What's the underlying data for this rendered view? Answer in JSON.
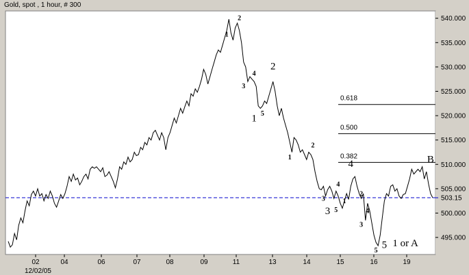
{
  "chart_data": {
    "type": "line",
    "title": "Gold, spot , 1 hour, # 300",
    "ylim": [
      491.5,
      541.5
    ],
    "y_ticks": [
      495,
      500,
      505,
      510,
      515,
      520,
      525,
      530,
      535,
      540
    ],
    "x_ticks": [
      "02",
      "04",
      "06",
      "07",
      "08",
      "09",
      "11",
      "13",
      "14",
      "15",
      "16",
      "19"
    ],
    "x_sub_label": "12/02/05",
    "last_price": {
      "value": 503.15,
      "label": "503.15",
      "color": "#0000cc"
    },
    "fib_levels": [
      {
        "label": "0.618",
        "value": 522.3
      },
      {
        "label": "0.500",
        "value": 516.3
      },
      {
        "label": "0.382",
        "value": 510.4
      }
    ],
    "series": [
      {
        "color": "#000000",
        "points": [
          [
            0,
            494.2
          ],
          [
            1,
            493.0
          ],
          [
            2,
            493.5
          ],
          [
            3,
            495.8
          ],
          [
            4,
            494.5
          ],
          [
            5,
            497.5
          ],
          [
            6,
            499.0
          ],
          [
            7,
            498.0
          ],
          [
            8,
            500.5
          ],
          [
            9,
            502.5
          ],
          [
            10,
            501.5
          ],
          [
            11,
            503.8
          ],
          [
            12,
            504.5
          ],
          [
            13,
            503.5
          ],
          [
            14,
            505.0
          ],
          [
            15,
            503.5
          ],
          [
            16,
            504.0
          ],
          [
            17,
            502.5
          ],
          [
            18,
            503.8
          ],
          [
            19,
            503.0
          ],
          [
            20,
            504.5
          ],
          [
            21,
            503.5
          ],
          [
            22,
            502.0
          ],
          [
            23,
            501.2
          ],
          [
            24,
            502.5
          ],
          [
            25,
            503.8
          ],
          [
            26,
            503.0
          ],
          [
            27,
            504.0
          ],
          [
            28,
            505.5
          ],
          [
            29,
            507.5
          ],
          [
            30,
            506.5
          ],
          [
            31,
            508.0
          ],
          [
            32,
            506.8
          ],
          [
            33,
            507.2
          ],
          [
            34,
            505.8
          ],
          [
            35,
            506.5
          ],
          [
            36,
            507.5
          ],
          [
            37,
            508.0
          ],
          [
            38,
            507.0
          ],
          [
            39,
            509.0
          ],
          [
            40,
            509.5
          ],
          [
            41,
            509.2
          ],
          [
            42,
            509.5
          ],
          [
            43,
            509.0
          ],
          [
            44,
            508.5
          ],
          [
            45,
            509.3
          ],
          [
            46,
            507.5
          ],
          [
            47,
            507.8
          ],
          [
            48,
            508.5
          ],
          [
            49,
            507.5
          ],
          [
            50,
            506.5
          ],
          [
            51,
            505.2
          ],
          [
            52,
            507.0
          ],
          [
            53,
            509.5
          ],
          [
            54,
            509.0
          ],
          [
            55,
            510.5
          ],
          [
            56,
            510.0
          ],
          [
            57,
            511.5
          ],
          [
            58,
            510.5
          ],
          [
            59,
            511.0
          ],
          [
            60,
            512.5
          ],
          [
            61,
            511.8
          ],
          [
            62,
            512.0
          ],
          [
            63,
            513.5
          ],
          [
            64,
            513.0
          ],
          [
            65,
            514.5
          ],
          [
            66,
            514.0
          ],
          [
            67,
            515.5
          ],
          [
            68,
            515.0
          ],
          [
            69,
            516.5
          ],
          [
            70,
            517.0
          ],
          [
            71,
            516.0
          ],
          [
            72,
            515.0
          ],
          [
            73,
            516.5
          ],
          [
            74,
            515.5
          ],
          [
            75,
            513.0
          ],
          [
            76,
            515.5
          ],
          [
            77,
            516.5
          ],
          [
            78,
            518.0
          ],
          [
            79,
            519.5
          ],
          [
            80,
            518.5
          ],
          [
            81,
            520.0
          ],
          [
            82,
            521.5
          ],
          [
            83,
            520.5
          ],
          [
            84,
            521.8
          ],
          [
            85,
            523.0
          ],
          [
            86,
            522.0
          ],
          [
            87,
            524.5
          ],
          [
            88,
            524.0
          ],
          [
            89,
            525.5
          ],
          [
            90,
            524.8
          ],
          [
            91,
            526.0
          ],
          [
            92,
            527.5
          ],
          [
            93,
            529.5
          ],
          [
            94,
            528.5
          ],
          [
            95,
            526.5
          ],
          [
            96,
            528.0
          ],
          [
            97,
            529.5
          ],
          [
            98,
            531.0
          ],
          [
            99,
            532.5
          ],
          [
            100,
            533.5
          ],
          [
            101,
            533.0
          ],
          [
            102,
            534.5
          ],
          [
            103,
            536.0
          ],
          [
            104,
            537.5
          ],
          [
            105,
            539.8
          ],
          [
            106,
            537.0
          ],
          [
            107,
            535.5
          ],
          [
            108,
            538.0
          ],
          [
            109,
            539.0
          ],
          [
            110,
            537.5
          ],
          [
            111,
            535.0
          ],
          [
            112,
            531.0
          ],
          [
            113,
            530.0
          ],
          [
            114,
            527.0
          ],
          [
            115,
            528.0
          ],
          [
            116,
            527.5
          ],
          [
            117,
            527.0
          ],
          [
            118,
            526.0
          ],
          [
            119,
            522.0
          ],
          [
            120,
            521.5
          ],
          [
            121,
            522.0
          ],
          [
            122,
            523.0
          ],
          [
            123,
            522.5
          ],
          [
            124,
            524.0
          ],
          [
            125,
            525.5
          ],
          [
            126,
            527.0
          ],
          [
            127,
            525.0
          ],
          [
            128,
            522.0
          ],
          [
            129,
            520.0
          ],
          [
            130,
            521.5
          ],
          [
            131,
            519.5
          ],
          [
            132,
            518.0
          ],
          [
            133,
            516.5
          ],
          [
            134,
            514.5
          ],
          [
            135,
            512.5
          ],
          [
            136,
            515.5
          ],
          [
            137,
            515.0
          ],
          [
            138,
            514.0
          ],
          [
            139,
            512.5
          ],
          [
            140,
            513.0
          ],
          [
            141,
            512.0
          ],
          [
            142,
            511.0
          ],
          [
            143,
            512.5
          ],
          [
            144,
            512.0
          ],
          [
            145,
            511.0
          ],
          [
            146,
            508.5
          ],
          [
            147,
            506.5
          ],
          [
            148,
            505.0
          ],
          [
            149,
            504.8
          ],
          [
            150,
            505.5
          ],
          [
            151,
            503.5
          ],
          [
            152,
            504.8
          ],
          [
            153,
            505.5
          ],
          [
            154,
            504.5
          ],
          [
            155,
            503.0
          ],
          [
            156,
            504.5
          ],
          [
            157,
            503.5
          ],
          [
            158,
            502.0
          ],
          [
            159,
            501.0
          ],
          [
            160,
            502.5
          ],
          [
            161,
            504.0
          ],
          [
            162,
            502.8
          ],
          [
            163,
            505.5
          ],
          [
            164,
            507.0
          ],
          [
            165,
            507.5
          ],
          [
            166,
            505.5
          ],
          [
            167,
            504.0
          ],
          [
            168,
            503.0
          ],
          [
            169,
            504.0
          ],
          [
            170,
            498.5
          ],
          [
            171,
            502.0
          ],
          [
            172,
            500.5
          ],
          [
            173,
            498.0
          ],
          [
            174,
            495.5
          ],
          [
            175,
            494.0
          ],
          [
            176,
            493.3
          ],
          [
            177,
            495.5
          ],
          [
            178,
            499.0
          ],
          [
            179,
            502.5
          ],
          [
            180,
            504.0
          ],
          [
            181,
            503.5
          ],
          [
            182,
            505.5
          ],
          [
            183,
            505.8
          ],
          [
            184,
            504.5
          ],
          [
            185,
            505.0
          ],
          [
            186,
            503.5
          ],
          [
            187,
            503.0
          ],
          [
            188,
            503.8
          ],
          [
            189,
            504.0
          ],
          [
            190,
            505.5
          ],
          [
            191,
            507.0
          ],
          [
            192,
            509.0
          ],
          [
            193,
            508.0
          ],
          [
            194,
            508.5
          ],
          [
            195,
            509.0
          ],
          [
            196,
            508.5
          ],
          [
            197,
            509.5
          ],
          [
            198,
            507.0
          ],
          [
            199,
            508.5
          ],
          [
            200,
            506.0
          ],
          [
            201,
            504.0
          ],
          [
            202,
            503.15
          ]
        ]
      }
    ],
    "annotations": [
      {
        "text": "1",
        "x": 104,
        "y": 536.2,
        "size": "small"
      },
      {
        "text": "2",
        "x": 110,
        "y": 539.6,
        "size": "small"
      },
      {
        "text": "3",
        "x": 112,
        "y": 525.6,
        "size": "small"
      },
      {
        "text": "4",
        "x": 117,
        "y": 528.2,
        "size": "small"
      },
      {
        "text": "2",
        "x": 126,
        "y": 529.5,
        "size": "large"
      },
      {
        "text": "5",
        "x": 121,
        "y": 520.0,
        "size": "small"
      },
      {
        "text": "1",
        "x": 117,
        "y": 518.8,
        "size": "large"
      },
      {
        "text": "1",
        "x": 134,
        "y": 511.0,
        "size": "small"
      },
      {
        "text": "2",
        "x": 145,
        "y": 513.5,
        "size": "small"
      },
      {
        "text": "4",
        "x": 163,
        "y": 509.5,
        "size": "large"
      },
      {
        "text": "4",
        "x": 157,
        "y": 505.5,
        "size": "small"
      },
      {
        "text": "3",
        "x": 150,
        "y": 502.5,
        "size": "small"
      },
      {
        "text": "5",
        "x": 156,
        "y": 500.2,
        "size": "small"
      },
      {
        "text": "3",
        "x": 152,
        "y": 499.8,
        "size": "large"
      },
      {
        "text": "1",
        "x": 160,
        "y": 502.0,
        "size": "small"
      },
      {
        "text": "2",
        "x": 168,
        "y": 503.5,
        "size": "small"
      },
      {
        "text": "3",
        "x": 168,
        "y": 497.2,
        "size": "small"
      },
      {
        "text": "4",
        "x": 171,
        "y": 500.0,
        "size": "small"
      },
      {
        "text": "5",
        "x": 175,
        "y": 491.9,
        "size": "small"
      },
      {
        "text": "5",
        "x": 179,
        "y": 492.8,
        "size": "large"
      },
      {
        "text": "B",
        "x": 201,
        "y": 510.4,
        "size": "large"
      },
      {
        "text": "1 or A",
        "x": 189,
        "y": 493.2,
        "size": "large"
      }
    ]
  }
}
